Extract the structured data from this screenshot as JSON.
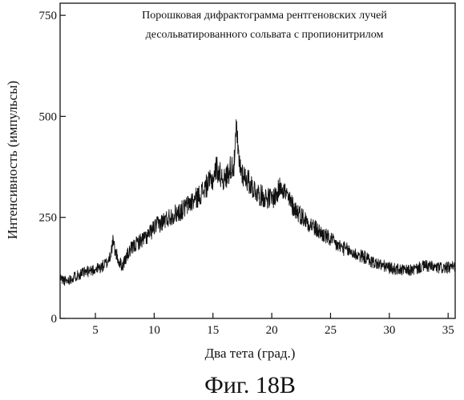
{
  "figure_caption": "Фиг. 18В",
  "chart_data": {
    "type": "line",
    "title": "Порошковая дифрактограмма рентгеновских лучей десольватированного сольвата с пропионитрилом",
    "title_lines": [
      "Порошковая дифрактограмма рентгеновских лучей",
      "десольватированного сольвата с пропионитрилом"
    ],
    "xlabel": "Два тета (град.)",
    "ylabel": "Интенсивность (импульсы)",
    "xlim": [
      2,
      35.6
    ],
    "ylim": [
      0,
      780
    ],
    "x_ticks": [
      5,
      10,
      15,
      20,
      25,
      30,
      35
    ],
    "y_ticks": [
      0,
      250,
      500,
      750
    ],
    "grid": false,
    "legend": "none",
    "line_color": "#111111",
    "series": [
      {
        "x": [
          2.0,
          2.5,
          3.0,
          3.5,
          4.0,
          4.5,
          5.0,
          5.5,
          6.0,
          6.3,
          6.5,
          6.7,
          7.0,
          7.3,
          7.6,
          8.0,
          8.5,
          9.0,
          9.5,
          10.0,
          10.5,
          11.0,
          11.5,
          12.0,
          12.5,
          13.0,
          13.5,
          14.0,
          14.5,
          15.0,
          15.3,
          15.5,
          15.8,
          16.0,
          16.5,
          16.8,
          17.0,
          17.2,
          17.5,
          18.0,
          18.5,
          19.0,
          19.5,
          20.0,
          20.5,
          20.8,
          21.0,
          21.5,
          22.0,
          22.5,
          23.0,
          23.5,
          24.0,
          24.5,
          25.0,
          25.5,
          26.0,
          26.5,
          27.0,
          27.5,
          28.0,
          28.5,
          29.0,
          29.5,
          30.0,
          30.5,
          31.0,
          31.5,
          32.0,
          32.5,
          33.0,
          33.5,
          34.0,
          34.5,
          35.0,
          35.6
        ],
        "y": [
          100,
          92,
          100,
          108,
          112,
          118,
          122,
          126,
          138,
          160,
          190,
          165,
          140,
          130,
          150,
          170,
          185,
          195,
          205,
          225,
          235,
          245,
          255,
          262,
          270,
          285,
          295,
          310,
          330,
          345,
          375,
          360,
          350,
          340,
          375,
          380,
          470,
          390,
          360,
          340,
          320,
          305,
          300,
          295,
          310,
          335,
          320,
          290,
          270,
          255,
          240,
          228,
          215,
          205,
          195,
          182,
          175,
          168,
          160,
          155,
          150,
          140,
          135,
          130,
          125,
          122,
          120,
          118,
          120,
          125,
          130,
          128,
          125,
          125,
          125,
          128
        ]
      }
    ]
  }
}
